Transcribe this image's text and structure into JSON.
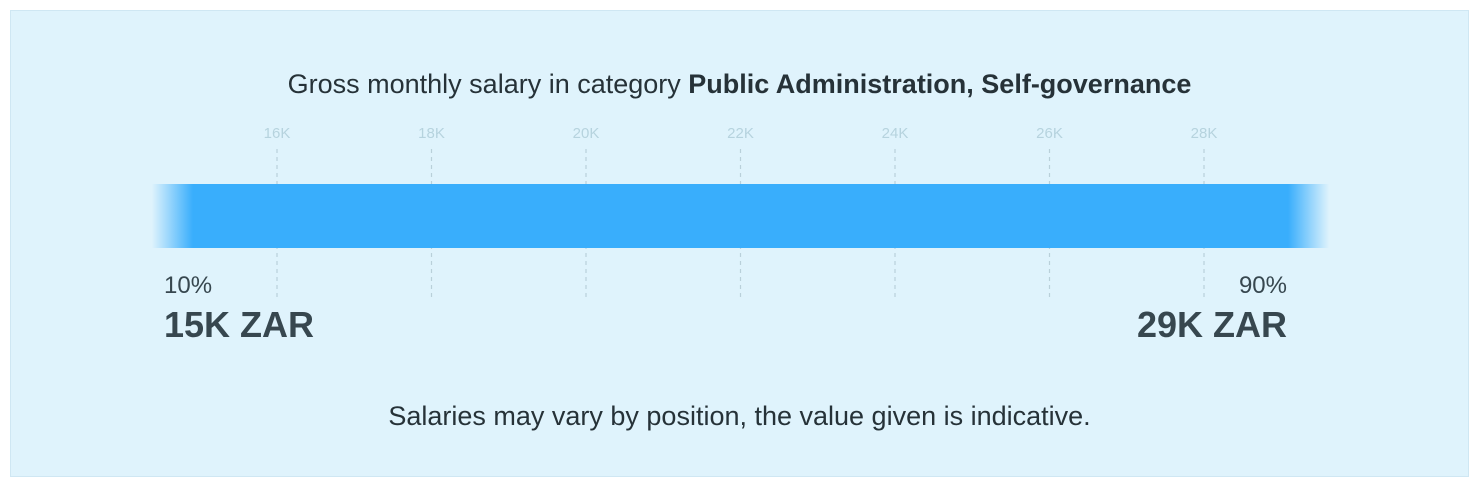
{
  "title": {
    "prefix": "Gross monthly salary in category ",
    "category": "Public Administration, Self-governance"
  },
  "chart_data": {
    "type": "bar",
    "title": "Gross monthly salary in category Public Administration, Self-governance",
    "tick_labels": [
      "16K",
      "18K",
      "20K",
      "22K",
      "24K",
      "26K",
      "28K"
    ],
    "ticks": [
      16000,
      18000,
      20000,
      22000,
      24000,
      26000,
      28000
    ],
    "range": {
      "low_percentile_label": "10%",
      "low_value_label": "15K ZAR",
      "low": 15000,
      "high_percentile_label": "90%",
      "high_value_label": "29K ZAR",
      "high": 29000
    },
    "bar_color": "#39aefc",
    "grid": true
  },
  "note": "Salaries may vary by position, the value given is indicative."
}
